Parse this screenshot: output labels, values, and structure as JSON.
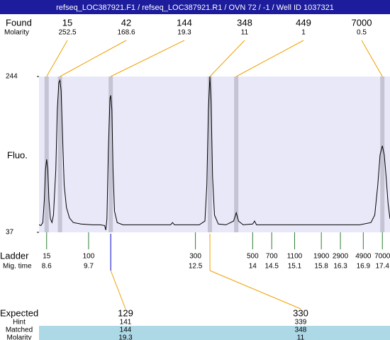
{
  "title": "refseq_LOC387921.F1 / refseq_LOC387921.R1 / OVN 72 / -1 / Well ID 1037321",
  "found": {
    "label": "Found",
    "sublabel": "Molarity",
    "peaks": [
      {
        "size": 15,
        "molarity": 252.5,
        "mig_time": 8.6
      },
      {
        "size": 42,
        "molarity": 168.6,
        "mig_time": 8.95
      },
      {
        "size": 144,
        "molarity": 19.3,
        "mig_time": 10.28
      },
      {
        "size": 348,
        "molarity": 11,
        "mig_time": 12.88
      },
      {
        "size": 449,
        "molarity": 1,
        "mig_time": 13.57
      },
      {
        "size": 7000,
        "molarity": 0.5,
        "mig_time": 17.4
      }
    ]
  },
  "chart_data": {
    "type": "line",
    "y_label": "Fluo.",
    "ylim": [
      37,
      244
    ],
    "yticks": [
      37,
      244
    ],
    "xlim": [
      8.4,
      17.6
    ],
    "color": "#000000",
    "x": [
      8.4,
      8.45,
      8.5,
      8.54,
      8.57,
      8.6,
      8.63,
      8.66,
      8.7,
      8.74,
      8.78,
      8.84,
      8.88,
      8.92,
      8.95,
      8.98,
      9.02,
      9.06,
      9.12,
      9.2,
      9.3,
      9.5,
      9.8,
      10.0,
      10.12,
      10.15,
      10.18,
      10.22,
      10.26,
      10.28,
      10.31,
      10.34,
      10.38,
      10.45,
      10.6,
      11.0,
      11.5,
      11.85,
      11.9,
      11.95,
      12.3,
      12.6,
      12.75,
      12.8,
      12.84,
      12.88,
      12.91,
      12.95,
      13.0,
      13.1,
      13.3,
      13.5,
      13.57,
      13.63,
      13.75,
      14.0,
      14.05,
      14.1,
      14.5,
      15.0,
      16.0,
      16.8,
      17.1,
      17.2,
      17.28,
      17.34,
      17.4,
      17.45,
      17.5,
      17.55,
      17.6
    ],
    "values": [
      47,
      46,
      50,
      80,
      120,
      134,
      120,
      80,
      55,
      50,
      60,
      120,
      200,
      236,
      239,
      225,
      160,
      100,
      70,
      56,
      50,
      48,
      47,
      47,
      46,
      40,
      55,
      150,
      215,
      219,
      200,
      120,
      65,
      50,
      47,
      47,
      47,
      47,
      50,
      47,
      47,
      47,
      52,
      100,
      200,
      244,
      210,
      110,
      60,
      48,
      47,
      52,
      63,
      52,
      47,
      48,
      52,
      47,
      47,
      47,
      47,
      47,
      50,
      60,
      100,
      140,
      152,
      140,
      110,
      75,
      55
    ]
  },
  "ladder": {
    "label": "Ladder",
    "sublabel": "Mig. time",
    "sizes": [
      15,
      100,
      300,
      500,
      700,
      1100,
      1900,
      2900,
      4900,
      7000
    ],
    "mig_times": [
      8.6,
      9.7,
      12.5,
      14,
      14.5,
      15.1,
      15.8,
      16.3,
      16.9,
      17.4
    ]
  },
  "expected": {
    "labels": [
      "Expected",
      "Hint",
      "Matched",
      "Molarity"
    ],
    "columns": [
      [
        129,
        141,
        144,
        19.3
      ],
      [
        330,
        339,
        348,
        11
      ]
    ]
  }
}
